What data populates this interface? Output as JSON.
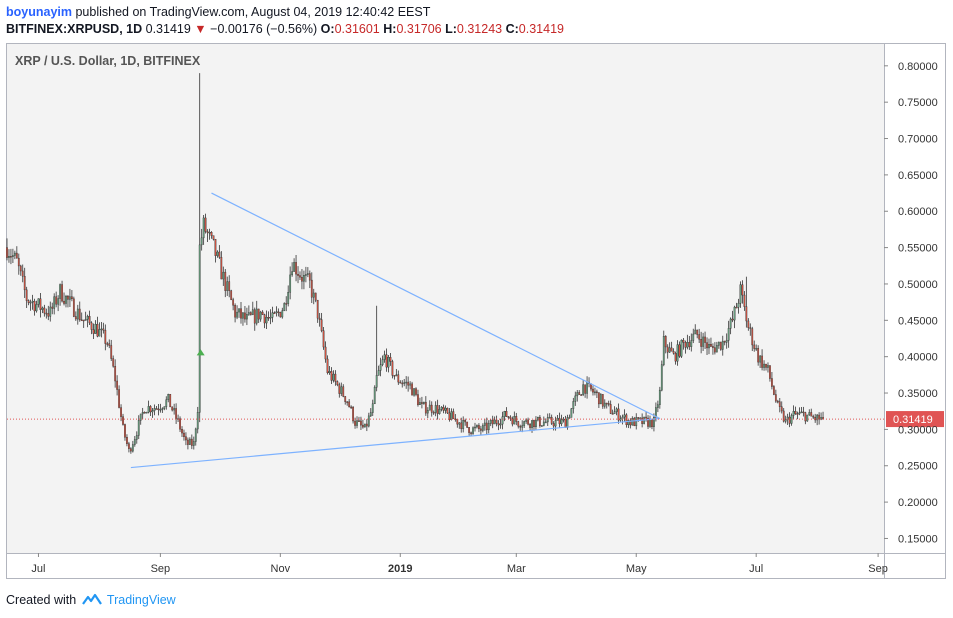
{
  "header": {
    "author": "boyunayim",
    "published_text": " published on TradingView.com, August 04, 2019 12:40:42 EEST"
  },
  "ohlc": {
    "symbol": "BITFINEX:XRPUSD, 1D",
    "last": "0.31419",
    "arrow": "▼",
    "change": "−0.00176 (−0.56%)",
    "o_label": "O:",
    "o": "0.31601",
    "h_label": "H:",
    "h": "0.31706",
    "l_label": "L:",
    "l": "0.31243",
    "c_label": "C:",
    "c": "0.31419"
  },
  "footer": {
    "created_with": "Created with",
    "brand": "TradingView"
  },
  "colors": {
    "up": "#6ba583",
    "down": "#d75442",
    "wick": "#333333",
    "trendline": "#7db2ff",
    "price_line": "#e05454",
    "price_label_bg": "#e05454",
    "plot_bg": "#f3f3f3",
    "marker": "#4caf50"
  },
  "chart_data": {
    "type": "candlestick",
    "title": "XRP / U.S. Dollar, 1D, BITFINEX",
    "x_ticks": [
      {
        "label": "Jul",
        "date": "2018-07-01"
      },
      {
        "label": "Sep",
        "date": "2018-09-01"
      },
      {
        "label": "Nov",
        "date": "2018-11-01"
      },
      {
        "label": "2019",
        "date": "2019-01-01"
      },
      {
        "label": "Mar",
        "date": "2019-03-01"
      },
      {
        "label": "May",
        "date": "2019-05-01"
      },
      {
        "label": "Jul",
        "date": "2019-07-01"
      },
      {
        "label": "Sep",
        "date": "2019-09-01"
      }
    ],
    "x_range": [
      "2018-06-15",
      "2019-09-04"
    ],
    "y_ticks": [
      "0.80000",
      "0.75000",
      "0.70000",
      "0.65000",
      "0.60000",
      "0.55000",
      "0.50000",
      "0.45000",
      "0.40000",
      "0.35000",
      "0.30000",
      "0.25000",
      "0.20000",
      "0.15000"
    ],
    "ylim": [
      0.13,
      0.83
    ],
    "last_price": 0.31419,
    "last_price_label": "0.31419",
    "price_path": [
      [
        "2018-06-15",
        0.55
      ],
      [
        "2018-06-20",
        0.53
      ],
      [
        "2018-06-25",
        0.48
      ],
      [
        "2018-07-01",
        0.47
      ],
      [
        "2018-07-07",
        0.46
      ],
      [
        "2018-07-12",
        0.49
      ],
      [
        "2018-07-18",
        0.47
      ],
      [
        "2018-07-24",
        0.45
      ],
      [
        "2018-07-30",
        0.44
      ],
      [
        "2018-08-05",
        0.42
      ],
      [
        "2018-08-09",
        0.37
      ],
      [
        "2018-08-13",
        0.3
      ],
      [
        "2018-08-16",
        0.27
      ],
      [
        "2018-08-19",
        0.29
      ],
      [
        "2018-08-24",
        0.33
      ],
      [
        "2018-08-30",
        0.33
      ],
      [
        "2018-09-05",
        0.34
      ],
      [
        "2018-09-10",
        0.31
      ],
      [
        "2018-09-14",
        0.28
      ],
      [
        "2018-09-18",
        0.28
      ],
      [
        "2018-09-20",
        0.33
      ],
      [
        "2018-09-21",
        0.55
      ],
      [
        "2018-09-23",
        0.58
      ],
      [
        "2018-09-28",
        0.55
      ],
      [
        "2018-10-04",
        0.5
      ],
      [
        "2018-10-09",
        0.46
      ],
      [
        "2018-10-15",
        0.45
      ],
      [
        "2018-10-22",
        0.46
      ],
      [
        "2018-10-28",
        0.45
      ],
      [
        "2018-11-03",
        0.47
      ],
      [
        "2018-11-07",
        0.53
      ],
      [
        "2018-11-12",
        0.51
      ],
      [
        "2018-11-16",
        0.5
      ],
      [
        "2018-11-20",
        0.46
      ],
      [
        "2018-11-25",
        0.38
      ],
      [
        "2018-11-30",
        0.36
      ],
      [
        "2018-12-05",
        0.34
      ],
      [
        "2018-12-09",
        0.31
      ],
      [
        "2018-12-14",
        0.3
      ],
      [
        "2018-12-18",
        0.33
      ],
      [
        "2018-12-20",
        0.37
      ],
      [
        "2018-12-24",
        0.4
      ],
      [
        "2018-12-30",
        0.37
      ],
      [
        "2019-01-06",
        0.36
      ],
      [
        "2019-01-12",
        0.33
      ],
      [
        "2019-01-18",
        0.33
      ],
      [
        "2019-01-25",
        0.32
      ],
      [
        "2019-01-31",
        0.31
      ],
      [
        "2019-02-06",
        0.3
      ],
      [
        "2019-02-12",
        0.3
      ],
      [
        "2019-02-18",
        0.31
      ],
      [
        "2019-02-24",
        0.32
      ],
      [
        "2019-03-02",
        0.31
      ],
      [
        "2019-03-10",
        0.31
      ],
      [
        "2019-03-18",
        0.31
      ],
      [
        "2019-03-26",
        0.31
      ],
      [
        "2019-03-31",
        0.34
      ],
      [
        "2019-04-04",
        0.36
      ],
      [
        "2019-04-10",
        0.35
      ],
      [
        "2019-04-16",
        0.33
      ],
      [
        "2019-04-22",
        0.32
      ],
      [
        "2019-04-28",
        0.31
      ],
      [
        "2019-05-04",
        0.31
      ],
      [
        "2019-05-10",
        0.31
      ],
      [
        "2019-05-13",
        0.35
      ],
      [
        "2019-05-15",
        0.42
      ],
      [
        "2019-05-20",
        0.4
      ],
      [
        "2019-05-26",
        0.42
      ],
      [
        "2019-06-01",
        0.43
      ],
      [
        "2019-06-08",
        0.41
      ],
      [
        "2019-06-14",
        0.42
      ],
      [
        "2019-06-19",
        0.45
      ],
      [
        "2019-06-23",
        0.49
      ],
      [
        "2019-06-27",
        0.44
      ],
      [
        "2019-07-02",
        0.4
      ],
      [
        "2019-07-07",
        0.38
      ],
      [
        "2019-07-12",
        0.33
      ],
      [
        "2019-07-16",
        0.31
      ],
      [
        "2019-07-20",
        0.32
      ],
      [
        "2019-07-25",
        0.32
      ],
      [
        "2019-07-31",
        0.315
      ],
      [
        "2019-08-04",
        0.31419
      ]
    ],
    "trendlines": [
      {
        "from": [
          "2018-08-17",
          0.2475
        ],
        "to": [
          "2019-05-13",
          0.315
        ]
      },
      {
        "from": [
          "2018-09-27",
          0.625
        ],
        "to": [
          "2019-05-13",
          0.315
        ]
      }
    ],
    "spikes": [
      {
        "date": "2018-09-21",
        "high": 0.79,
        "low": 0.31
      },
      {
        "date": "2018-12-20",
        "high": 0.47,
        "low": 0.36
      },
      {
        "date": "2019-06-26",
        "high": 0.51,
        "low": 0.44
      }
    ],
    "marker": {
      "date": "2018-09-21",
      "value": 0.41
    }
  }
}
